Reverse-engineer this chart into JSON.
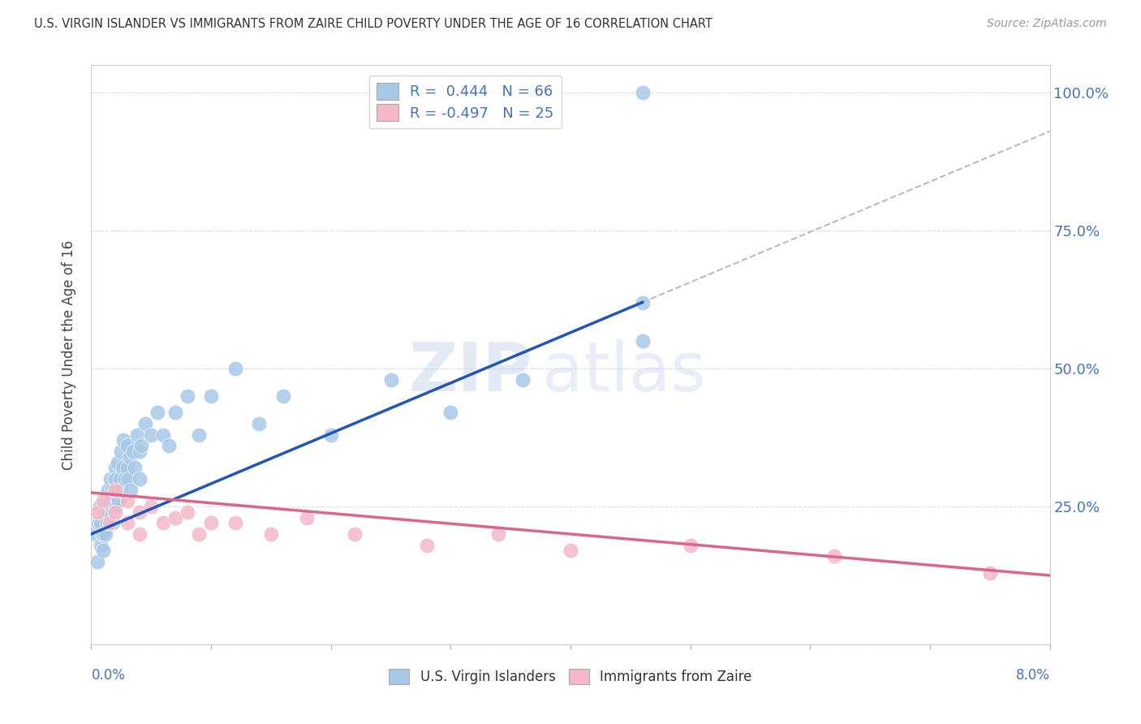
{
  "title": "U.S. VIRGIN ISLANDER VS IMMIGRANTS FROM ZAIRE CHILD POVERTY UNDER THE AGE OF 16 CORRELATION CHART",
  "source": "Source: ZipAtlas.com",
  "ylabel": "Child Poverty Under the Age of 16",
  "xlim": [
    0.0,
    0.08
  ],
  "ylim": [
    0.0,
    1.05
  ],
  "yticks": [
    0.0,
    0.25,
    0.5,
    0.75,
    1.0
  ],
  "ytick_labels": [
    "",
    "25.0%",
    "50.0%",
    "75.0%",
    "100.0%"
  ],
  "blue_R": 0.444,
  "blue_N": 66,
  "pink_R": -0.497,
  "pink_N": 25,
  "blue_color": "#a8c8e8",
  "pink_color": "#f4b8c8",
  "blue_line_color": "#2255bb",
  "pink_line_color": "#dd6688",
  "gray_dashed_color": "#bbbbbb",
  "legend_label_blue": "U.S. Virgin Islanders",
  "legend_label_pink": "Immigrants from Zaire",
  "blue_line_x0": 0.0,
  "blue_line_y0": 0.2,
  "blue_line_x1": 0.046,
  "blue_line_y1": 0.62,
  "gray_line_x0": 0.046,
  "gray_line_y0": 0.62,
  "gray_line_x1": 0.08,
  "gray_line_y1": 0.93,
  "pink_line_x0": 0.0,
  "pink_line_y0": 0.275,
  "pink_line_x1": 0.08,
  "pink_line_y1": 0.125,
  "blue_dots_x": [
    0.0003,
    0.0005,
    0.0006,
    0.0007,
    0.0008,
    0.0008,
    0.0009,
    0.001,
    0.001,
    0.0011,
    0.0012,
    0.0013,
    0.0013,
    0.0014,
    0.0014,
    0.0015,
    0.0015,
    0.0016,
    0.0017,
    0.0017,
    0.0018,
    0.0018,
    0.0019,
    0.002,
    0.002,
    0.002,
    0.0021,
    0.0022,
    0.0022,
    0.0023,
    0.0024,
    0.0025,
    0.0025,
    0.0026,
    0.0027,
    0.0028,
    0.003,
    0.003,
    0.0031,
    0.0032,
    0.0033,
    0.0035,
    0.0036,
    0.0038,
    0.004,
    0.004,
    0.0042,
    0.0045,
    0.005,
    0.0055,
    0.006,
    0.0065,
    0.007,
    0.008,
    0.009,
    0.01,
    0.012,
    0.014,
    0.016,
    0.02,
    0.025,
    0.03,
    0.036,
    0.046,
    0.046,
    0.046
  ],
  "blue_dots_y": [
    0.2,
    0.15,
    0.22,
    0.25,
    0.18,
    0.22,
    0.2,
    0.17,
    0.2,
    0.24,
    0.2,
    0.22,
    0.26,
    0.24,
    0.28,
    0.22,
    0.26,
    0.3,
    0.25,
    0.28,
    0.22,
    0.27,
    0.3,
    0.28,
    0.32,
    0.25,
    0.3,
    0.28,
    0.33,
    0.26,
    0.3,
    0.35,
    0.28,
    0.32,
    0.37,
    0.3,
    0.32,
    0.36,
    0.3,
    0.34,
    0.28,
    0.35,
    0.32,
    0.38,
    0.35,
    0.3,
    0.36,
    0.4,
    0.38,
    0.42,
    0.38,
    0.36,
    0.42,
    0.45,
    0.38,
    0.45,
    0.5,
    0.4,
    0.45,
    0.38,
    0.48,
    0.42,
    0.48,
    0.62,
    0.55,
    1.0
  ],
  "pink_dots_x": [
    0.0005,
    0.001,
    0.0015,
    0.002,
    0.002,
    0.003,
    0.003,
    0.004,
    0.004,
    0.005,
    0.006,
    0.007,
    0.008,
    0.009,
    0.01,
    0.012,
    0.015,
    0.018,
    0.022,
    0.028,
    0.034,
    0.04,
    0.05,
    0.062,
    0.075
  ],
  "pink_dots_y": [
    0.24,
    0.26,
    0.22,
    0.28,
    0.24,
    0.22,
    0.26,
    0.24,
    0.2,
    0.25,
    0.22,
    0.23,
    0.24,
    0.2,
    0.22,
    0.22,
    0.2,
    0.23,
    0.2,
    0.18,
    0.2,
    0.17,
    0.18,
    0.16,
    0.13
  ]
}
